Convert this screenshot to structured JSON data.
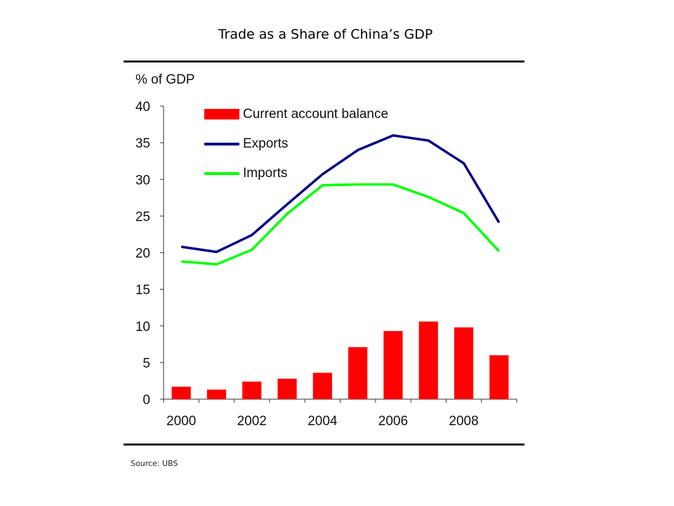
{
  "page": {
    "title": "Trade as a Share of China’s GDP",
    "source": "Source: UBS"
  },
  "chart_data": {
    "type": "bar",
    "title": "Trade as a Share of China’s GDP",
    "ylabel": "% of GDP",
    "xlabel": "",
    "ylim": [
      0,
      40
    ],
    "yticks": [
      "0",
      "5",
      "10",
      "15",
      "20",
      "25",
      "30",
      "35",
      "40"
    ],
    "xtick_labels": [
      "2000",
      "2002",
      "2004",
      "2006",
      "2008"
    ],
    "categories": [
      "2000",
      "2001",
      "2002",
      "2003",
      "2004",
      "2005",
      "2006",
      "2007",
      "2008",
      "2009"
    ],
    "series": [
      {
        "name": "Current account balance",
        "type": "bar",
        "color": "#ff0000",
        "values": [
          1.7,
          1.3,
          2.4,
          2.8,
          3.6,
          7.1,
          9.3,
          10.6,
          9.8,
          6.0
        ]
      },
      {
        "name": "Exports",
        "type": "line",
        "color": "#000080",
        "values": [
          20.8,
          20.1,
          22.4,
          26.6,
          30.7,
          34.0,
          36.0,
          35.3,
          32.2,
          24.1
        ]
      },
      {
        "name": "Imports",
        "type": "line",
        "color": "#00ff00",
        "values": [
          18.8,
          18.4,
          20.4,
          25.3,
          29.2,
          29.3,
          29.3,
          27.6,
          25.4,
          20.2
        ]
      }
    ],
    "legend_position": "top-left",
    "grid": false
  }
}
